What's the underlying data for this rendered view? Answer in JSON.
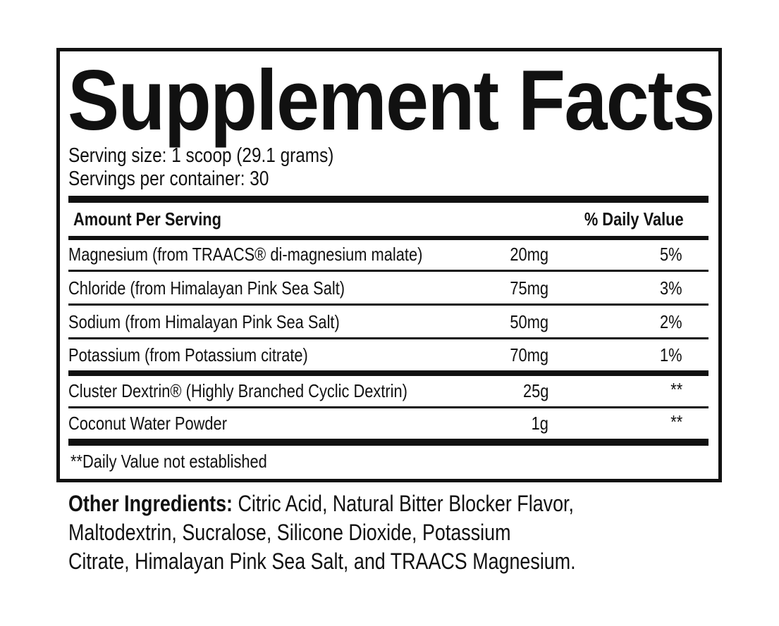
{
  "title": "Supplement Facts",
  "serving_size": "Serving size: 1 scoop (29.1 grams)",
  "servings_per_container": "Servings per container: 30",
  "header": {
    "amount": "Amount Per Serving",
    "dv": "% Daily Value"
  },
  "rows": [
    {
      "name": "Magnesium (from TRAACS® di-magnesium malate)",
      "amount": "20mg",
      "dv": "5%"
    },
    {
      "name": "Chloride (from Himalayan Pink Sea Salt)",
      "amount": "75mg",
      "dv": "3%"
    },
    {
      "name": "Sodium (from Himalayan Pink Sea Salt)",
      "amount": "50mg",
      "dv": "2%"
    },
    {
      "name": "Potassium (from Potassium citrate)",
      "amount": "70mg",
      "dv": "1%"
    },
    {
      "name": "Cluster Dextrin® (Highly Branched Cyclic Dextrin)",
      "amount": "25g",
      "dv": "**"
    },
    {
      "name": "Coconut Water Powder",
      "amount": "1g",
      "dv": "**"
    }
  ],
  "footnote": "**Daily Value not established",
  "other": {
    "label": "Other Ingredients:",
    "line1": " Citric Acid, Natural Bitter Blocker Flavor,",
    "line2": "Maltodextrin, Sucralose, Silicone Dioxide, Potassium",
    "line3": "Citrate, Himalayan Pink Sea Salt, and TRAACS Magnesium."
  }
}
